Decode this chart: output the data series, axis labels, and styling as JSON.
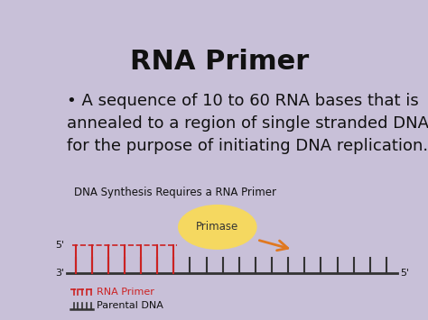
{
  "title": "RNA Primer",
  "bullet_text": "A sequence of 10 to 60 RNA bases that is\nannealed to a region of single stranded DNA\nfor the purpose of initiating DNA replication.",
  "diagram_title": "DNA Synthesis Requires a RNA Primer",
  "background_color": "#c8c0d8",
  "white_box_color": "#ffffff",
  "primase_color": "#f5d860",
  "primase_label": "Primase",
  "arrow_color": "#e07820",
  "rna_primer_color": "#cc2222",
  "parental_dna_color": "#333333",
  "legend_rna_label": "RNA Primer",
  "legend_dna_label": "Parental DNA",
  "num_teeth_total": 20,
  "num_rna_teeth": 7,
  "title_fontsize": 22,
  "bullet_fontsize": 13,
  "diagram_title_fontsize": 8.5
}
